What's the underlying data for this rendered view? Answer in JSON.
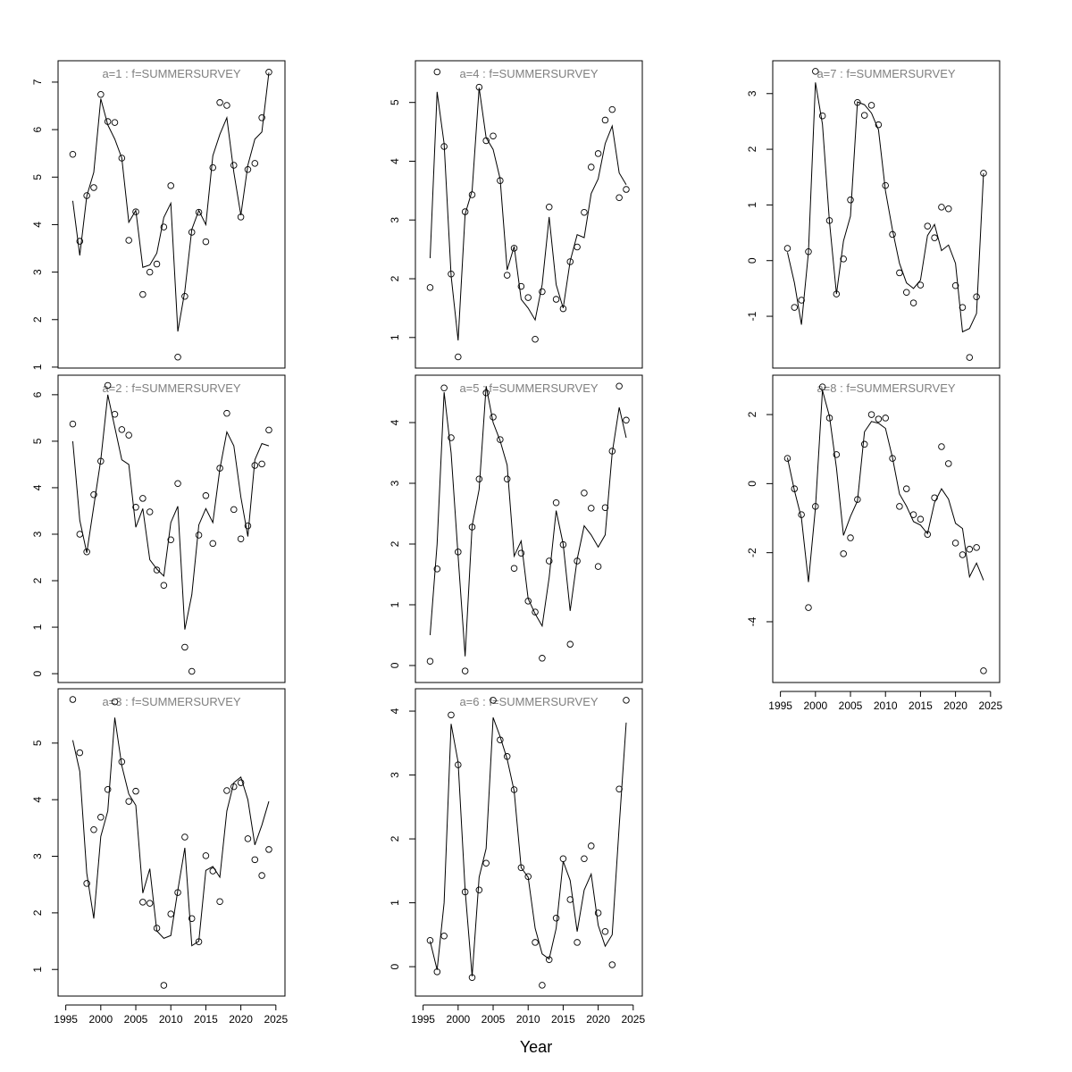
{
  "x_label": "Year",
  "chart_data": [
    {
      "type": "line",
      "title": "a=1 : f=SUMMERSURVEY",
      "x": [
        1996,
        1997,
        1998,
        1999,
        2000,
        2001,
        2002,
        2003,
        2004,
        2005,
        2006,
        2007,
        2008,
        2009,
        2010,
        2011,
        2012,
        2013,
        2014,
        2015,
        2016,
        2017,
        2018,
        2019,
        2020,
        2021,
        2022,
        2023,
        2024
      ],
      "series": [
        {
          "kind": "points",
          "color": "#000000",
          "values": [
            5.48,
            3.65,
            4.61,
            4.78,
            6.74,
            6.17,
            6.15,
            5.4,
            3.67,
            4.27,
            2.53,
            3.0,
            3.17,
            3.95,
            4.82,
            1.21,
            2.49,
            3.84,
            4.26,
            3.64,
            5.2,
            6.57,
            6.51,
            5.25,
            4.16,
            5.16,
            5.29,
            6.25,
            7.21
          ]
        },
        {
          "kind": "line",
          "color": "#000000",
          "values": [
            4.5,
            3.35,
            4.6,
            5.1,
            6.65,
            6.1,
            5.8,
            5.4,
            4.05,
            4.3,
            3.1,
            3.15,
            3.4,
            4.15,
            4.45,
            1.75,
            2.6,
            3.9,
            4.3,
            4.0,
            5.45,
            5.9,
            6.25,
            5.1,
            4.2,
            5.25,
            5.8,
            5.95,
            7.2
          ]
        }
      ],
      "xlim": [
        1993.9,
        2026.3
      ],
      "ylim": [
        0.98,
        7.45
      ],
      "yticks": [
        1,
        2,
        3,
        4,
        5,
        6,
        7
      ]
    },
    {
      "type": "line",
      "title": "a=2 : f=SUMMERSURVEY",
      "x": [
        1996,
        1997,
        1998,
        1999,
        2000,
        2001,
        2002,
        2003,
        2004,
        2005,
        2006,
        2007,
        2008,
        2009,
        2010,
        2011,
        2012,
        2013,
        2014,
        2015,
        2016,
        2017,
        2018,
        2019,
        2020,
        2021,
        2022,
        2023,
        2024
      ],
      "series": [
        {
          "kind": "points",
          "color": "#000000",
          "values": [
            5.37,
            3.0,
            2.62,
            3.85,
            4.57,
            6.2,
            5.58,
            5.25,
            5.13,
            3.58,
            3.77,
            3.48,
            2.23,
            1.9,
            2.88,
            4.09,
            0.57,
            0.05,
            2.98,
            3.83,
            2.8,
            4.42,
            5.6,
            3.53,
            2.9,
            3.18,
            4.48,
            4.51,
            5.24
          ]
        },
        {
          "kind": "line",
          "color": "#000000",
          "values": [
            5.0,
            3.3,
            2.6,
            3.6,
            4.6,
            6.0,
            5.3,
            4.6,
            4.5,
            3.15,
            3.55,
            2.45,
            2.25,
            2.1,
            3.25,
            3.6,
            0.95,
            1.7,
            3.2,
            3.55,
            3.25,
            4.4,
            5.2,
            4.9,
            3.8,
            2.95,
            4.6,
            4.95,
            4.9
          ]
        }
      ],
      "xlim": [
        1993.9,
        2026.3
      ],
      "ylim": [
        -0.19,
        6.42
      ],
      "yticks": [
        0,
        1,
        2,
        3,
        4,
        5,
        6
      ]
    },
    {
      "type": "line",
      "title": "a=3 : f=SUMMERSURVEY",
      "x": [
        1996,
        1997,
        1998,
        1999,
        2000,
        2001,
        2002,
        2003,
        2004,
        2005,
        2006,
        2007,
        2008,
        2009,
        2010,
        2011,
        2012,
        2013,
        2014,
        2015,
        2016,
        2017,
        2018,
        2019,
        2020,
        2021,
        2022,
        2023,
        2024
      ],
      "series": [
        {
          "kind": "points",
          "color": "#000000",
          "values": [
            5.77,
            4.83,
            2.52,
            3.47,
            3.69,
            4.18,
            5.73,
            4.67,
            3.97,
            4.15,
            2.19,
            2.17,
            1.73,
            0.72,
            1.98,
            2.36,
            3.34,
            1.9,
            1.49,
            3.01,
            2.74,
            2.2,
            4.16,
            4.23,
            4.3,
            3.31,
            2.94,
            2.66,
            3.12
          ]
        },
        {
          "kind": "line",
          "color": "#000000",
          "values": [
            5.05,
            4.5,
            2.7,
            1.9,
            3.35,
            3.8,
            5.45,
            4.6,
            4.1,
            3.9,
            2.35,
            2.78,
            1.68,
            1.55,
            1.6,
            2.4,
            3.15,
            1.42,
            1.5,
            2.75,
            2.82,
            2.63,
            3.8,
            4.3,
            4.4,
            4.0,
            3.2,
            3.55,
            3.97
          ]
        }
      ],
      "xlim": [
        1993.9,
        2026.3
      ],
      "ylim": [
        0.53,
        5.96
      ],
      "yticks": [
        1,
        2,
        3,
        4,
        5
      ],
      "xticks": [
        1995,
        2000,
        2005,
        2010,
        2015,
        2020,
        2025
      ]
    },
    {
      "type": "line",
      "title": "a=4 : f=SUMMERSURVEY",
      "x": [
        1996,
        1997,
        1998,
        1999,
        2000,
        2001,
        2002,
        2003,
        2004,
        2005,
        2006,
        2007,
        2008,
        2009,
        2010,
        2011,
        2012,
        2013,
        2014,
        2015,
        2016,
        2017,
        2018,
        2019,
        2020,
        2021,
        2022,
        2023,
        2024
      ],
      "series": [
        {
          "kind": "points",
          "color": "#000000",
          "values": [
            1.85,
            5.52,
            4.25,
            2.08,
            0.67,
            3.14,
            3.43,
            5.26,
            4.35,
            4.43,
            3.67,
            2.06,
            2.52,
            1.87,
            1.68,
            0.97,
            1.78,
            3.22,
            1.65,
            1.49,
            2.29,
            2.54,
            3.13,
            3.9,
            4.13,
            4.7,
            4.88,
            3.38,
            3.52
          ]
        },
        {
          "kind": "line",
          "color": "#000000",
          "values": [
            2.35,
            5.18,
            4.3,
            2.05,
            0.95,
            3.1,
            3.5,
            5.25,
            4.4,
            4.2,
            3.7,
            2.15,
            2.55,
            1.65,
            1.5,
            1.3,
            1.9,
            3.05,
            1.9,
            1.5,
            2.3,
            2.75,
            2.7,
            3.45,
            3.7,
            4.3,
            4.6,
            3.8,
            3.6
          ]
        }
      ],
      "xlim": [
        1993.9,
        2026.3
      ],
      "ylim": [
        0.48,
        5.71
      ],
      "yticks": [
        1,
        2,
        3,
        4,
        5
      ]
    },
    {
      "type": "line",
      "title": "a=5 : f=SUMMERSURVEY",
      "x": [
        1996,
        1997,
        1998,
        1999,
        2000,
        2001,
        2002,
        2003,
        2004,
        2005,
        2006,
        2007,
        2008,
        2009,
        2010,
        2011,
        2012,
        2013,
        2014,
        2015,
        2016,
        2017,
        2018,
        2019,
        2020,
        2021,
        2022,
        2023,
        2024
      ],
      "series": [
        {
          "kind": "points",
          "color": "#000000",
          "values": [
            0.07,
            1.59,
            4.57,
            3.75,
            1.87,
            -0.09,
            2.28,
            3.07,
            4.49,
            4.09,
            3.72,
            3.07,
            1.6,
            1.85,
            1.06,
            0.88,
            0.12,
            1.72,
            2.68,
            1.99,
            0.35,
            1.72,
            2.84,
            2.59,
            1.63,
            2.6,
            3.53,
            4.6,
            4.04
          ]
        },
        {
          "kind": "line",
          "color": "#000000",
          "values": [
            0.5,
            2.0,
            4.5,
            3.5,
            1.8,
            0.15,
            2.3,
            2.9,
            4.6,
            4.0,
            3.7,
            3.3,
            1.8,
            2.05,
            1.1,
            0.85,
            0.65,
            1.45,
            2.55,
            2.0,
            0.9,
            1.75,
            2.3,
            2.15,
            1.95,
            2.15,
            3.5,
            4.25,
            3.75
          ]
        }
      ],
      "xlim": [
        1993.9,
        2026.3
      ],
      "ylim": [
        -0.28,
        4.78
      ],
      "yticks": [
        0,
        1,
        2,
        3,
        4
      ]
    },
    {
      "type": "line",
      "title": "a=6 : f=SUMMERSURVEY",
      "x": [
        1996,
        1997,
        1998,
        1999,
        2000,
        2001,
        2002,
        2003,
        2004,
        2005,
        2006,
        2007,
        2008,
        2009,
        2010,
        2011,
        2012,
        2013,
        2014,
        2015,
        2016,
        2017,
        2018,
        2019,
        2020,
        2021,
        2022,
        2023,
        2024
      ],
      "series": [
        {
          "kind": "points",
          "color": "#000000",
          "values": [
            0.41,
            -0.08,
            0.48,
            3.94,
            3.16,
            1.17,
            -0.17,
            1.2,
            1.62,
            4.17,
            3.55,
            3.29,
            2.77,
            1.55,
            1.41,
            0.38,
            -0.29,
            0.11,
            0.76,
            1.69,
            1.05,
            0.38,
            1.69,
            1.89,
            0.84,
            0.55,
            0.03,
            2.78,
            4.17
          ]
        },
        {
          "kind": "line",
          "color": "#000000",
          "values": [
            0.4,
            -0.05,
            1.0,
            3.8,
            3.2,
            1.2,
            -0.15,
            1.4,
            1.85,
            3.9,
            3.6,
            3.25,
            2.75,
            1.55,
            1.4,
            0.6,
            0.2,
            0.12,
            0.6,
            1.65,
            1.35,
            0.55,
            1.2,
            1.45,
            0.65,
            0.32,
            0.5,
            2.2,
            3.82
          ]
        }
      ],
      "xlim": [
        1993.9,
        2026.3
      ],
      "ylim": [
        -0.46,
        4.35
      ],
      "yticks": [
        0,
        1,
        2,
        3,
        4
      ],
      "xticks": [
        1995,
        2000,
        2005,
        2010,
        2015,
        2020,
        2025
      ]
    },
    {
      "type": "line",
      "title": "a=7 : f=SUMMERSURVEY",
      "x": [
        1996,
        1997,
        1998,
        1999,
        2000,
        2001,
        2002,
        2003,
        2004,
        2005,
        2006,
        2007,
        2008,
        2009,
        2010,
        2011,
        2012,
        2013,
        2014,
        2015,
        2016,
        2017,
        2018,
        2019,
        2020,
        2021,
        2022,
        2023,
        2024
      ],
      "series": [
        {
          "kind": "points",
          "color": "#000000",
          "values": [
            0.22,
            -0.84,
            -0.71,
            0.16,
            3.4,
            2.6,
            0.72,
            -0.6,
            0.03,
            1.09,
            2.84,
            2.61,
            2.79,
            2.44,
            1.35,
            0.47,
            -0.22,
            -0.57,
            -0.76,
            -0.44,
            0.62,
            0.41,
            0.96,
            0.93,
            -0.45,
            -0.84,
            -1.74,
            -0.65,
            1.57
          ]
        },
        {
          "kind": "line",
          "color": "#000000",
          "values": [
            0.15,
            -0.4,
            -1.15,
            0.15,
            3.2,
            2.45,
            0.7,
            -0.6,
            0.35,
            0.8,
            2.85,
            2.8,
            2.65,
            2.35,
            1.25,
            0.55,
            -0.05,
            -0.4,
            -0.5,
            -0.35,
            0.45,
            0.65,
            0.18,
            0.28,
            -0.05,
            -1.28,
            -1.22,
            -0.95,
            1.57
          ]
        }
      ],
      "xlim": [
        1993.9,
        2026.3
      ],
      "ylim": [
        -1.93,
        3.59
      ],
      "yticks": [
        -1,
        0,
        1,
        2,
        3
      ]
    },
    {
      "type": "line",
      "title": "a=8 : f=SUMMERSURVEY",
      "x": [
        1996,
        1997,
        1998,
        1999,
        2000,
        2001,
        2002,
        2003,
        2004,
        2005,
        2006,
        2007,
        2008,
        2009,
        2010,
        2011,
        2012,
        2013,
        2014,
        2015,
        2016,
        2017,
        2018,
        2019,
        2020,
        2021,
        2022,
        2023,
        2024
      ],
      "series": [
        {
          "kind": "points",
          "color": "#000000",
          "values": [
            0.73,
            -0.15,
            -0.9,
            -3.59,
            -0.66,
            2.8,
            1.9,
            0.84,
            -2.03,
            -1.57,
            -0.46,
            1.14,
            2.0,
            1.87,
            1.9,
            0.73,
            -0.66,
            -0.15,
            -0.9,
            -1.03,
            -1.47,
            -0.41,
            1.07,
            0.58,
            -1.72,
            -2.06,
            -1.9,
            -1.85,
            -5.42
          ]
        },
        {
          "kind": "line",
          "color": "#000000",
          "values": [
            0.75,
            -0.2,
            -1.0,
            -2.85,
            -0.7,
            2.7,
            1.95,
            0.45,
            -1.5,
            -0.95,
            -0.5,
            1.5,
            1.8,
            1.75,
            1.6,
            0.75,
            -0.3,
            -0.65,
            -1.1,
            -1.2,
            -1.45,
            -0.55,
            -0.15,
            -0.45,
            -1.15,
            -1.3,
            -2.7,
            -2.3,
            -2.8
          ]
        }
      ],
      "xlim": [
        1993.9,
        2026.3
      ],
      "ylim": [
        -5.76,
        3.14
      ],
      "yticks": [
        -4,
        -2,
        0,
        2
      ],
      "xticks": [
        1995,
        2000,
        2005,
        2010,
        2015,
        2020,
        2025
      ]
    }
  ]
}
